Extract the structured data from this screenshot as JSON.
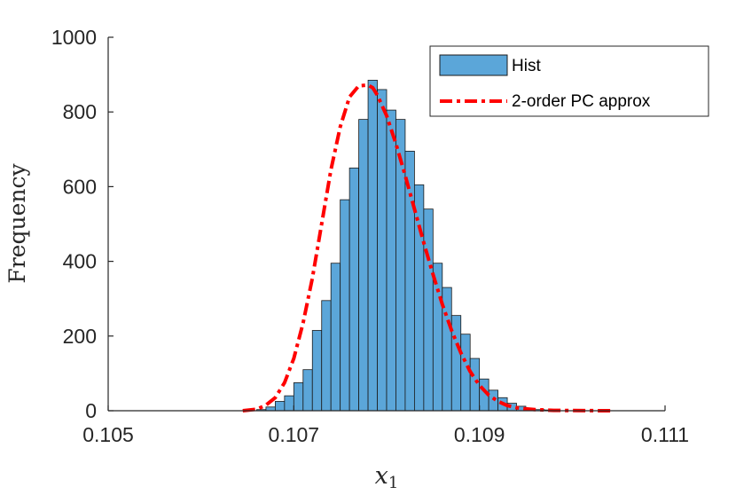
{
  "chart_data": {
    "type": "bar",
    "xlabel": "x",
    "xlabel_subscript": "1",
    "ylabel": "Frequency",
    "xlim": [
      0.105,
      0.111
    ],
    "ylim": [
      0,
      1000
    ],
    "xticks": [
      0.105,
      0.107,
      0.109,
      0.111
    ],
    "xtick_labels": [
      "0.105",
      "0.107",
      "0.109",
      "0.111"
    ],
    "yticks": [
      0,
      200,
      400,
      600,
      800,
      1000
    ],
    "ytick_labels": [
      "0",
      "200",
      "400",
      "600",
      "800",
      "1000"
    ],
    "grid": false,
    "legend_position": "top-right",
    "colors": {
      "bar_fill": "#5ba6d9",
      "bar_edge": "#1a1a1a",
      "curve": "#ff0000",
      "axis": "#262626"
    },
    "series": [
      {
        "name": "Hist",
        "type": "histogram",
        "bin_width": 0.0001,
        "bin_starts": [
          0.1066,
          0.1067,
          0.1068,
          0.1069,
          0.107,
          0.1071,
          0.1072,
          0.1073,
          0.1074,
          0.1075,
          0.1076,
          0.1077,
          0.1078,
          0.1079,
          0.108,
          0.1081,
          0.1082,
          0.1083,
          0.1084,
          0.1085,
          0.1086,
          0.1087,
          0.1088,
          0.1089,
          0.109,
          0.1091,
          0.1092,
          0.1093,
          0.1094,
          0.1095,
          0.1096,
          0.1097
        ],
        "values": [
          3,
          10,
          25,
          40,
          75,
          110,
          215,
          295,
          395,
          565,
          650,
          780,
          885,
          860,
          805,
          780,
          695,
          605,
          540,
          395,
          330,
          255,
          205,
          140,
          85,
          55,
          35,
          20,
          12,
          6,
          3,
          2
        ]
      },
      {
        "name": "2-order PC approx",
        "type": "line",
        "style": "dash-dot",
        "x": [
          0.10645,
          0.1066,
          0.1067,
          0.1068,
          0.1069,
          0.107,
          0.1071,
          0.1072,
          0.1073,
          0.1074,
          0.1075,
          0.1076,
          0.1077,
          0.1078,
          0.10785,
          0.1079,
          0.108,
          0.1081,
          0.1082,
          0.1083,
          0.1084,
          0.1085,
          0.1086,
          0.1087,
          0.1088,
          0.1089,
          0.109,
          0.1091,
          0.1092,
          0.1093,
          0.1094,
          0.1095,
          0.1096,
          0.1098,
          0.11,
          0.1102,
          0.11045
        ],
        "y": [
          0,
          4,
          15,
          35,
          75,
          140,
          235,
          355,
          500,
          645,
          760,
          840,
          870,
          872,
          865,
          845,
          790,
          715,
          630,
          540,
          450,
          365,
          285,
          215,
          155,
          105,
          68,
          42,
          25,
          14,
          8,
          5,
          3,
          1,
          0.5,
          0.2,
          0
        ]
      }
    ]
  }
}
